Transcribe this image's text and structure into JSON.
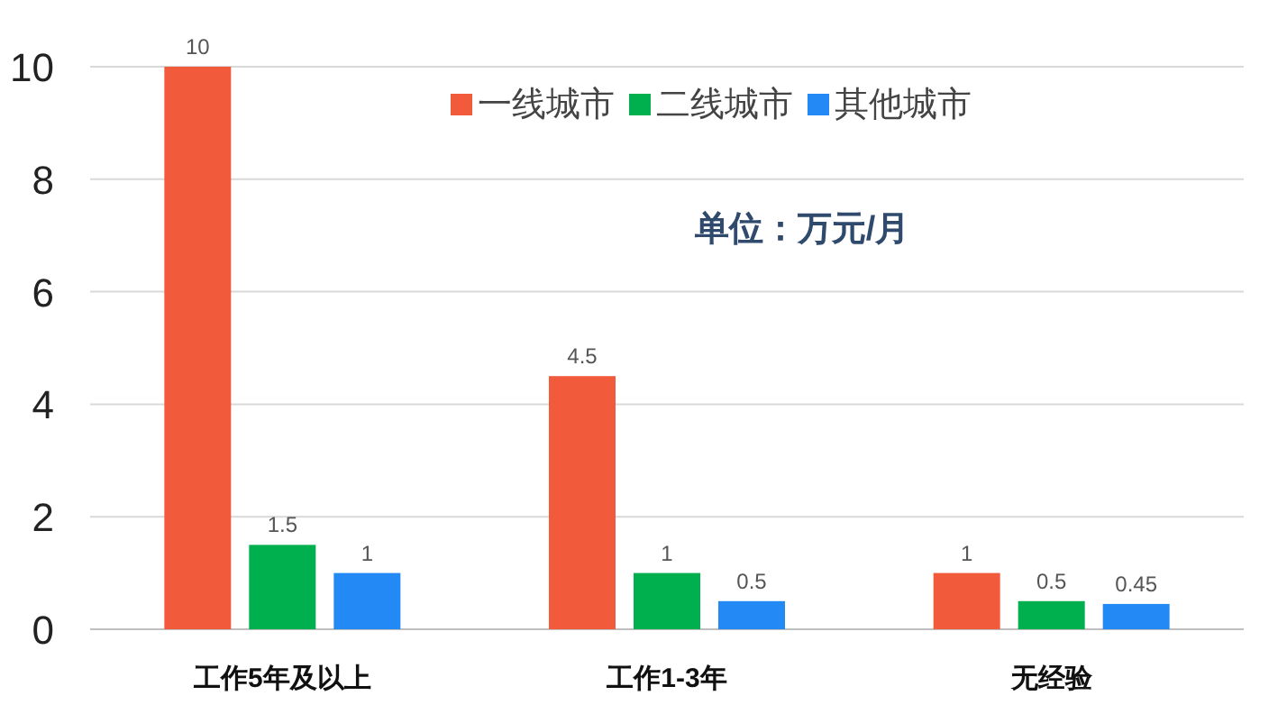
{
  "chart_data": {
    "type": "bar",
    "categories": [
      "工作5年及以上",
      "工作1-3年",
      "无经验"
    ],
    "series": [
      {
        "name": "一线城市",
        "color": "#f15a3a",
        "values": [
          10,
          4.5,
          1
        ]
      },
      {
        "name": "二线城市",
        "color": "#00b04f",
        "values": [
          1.5,
          1,
          0.5
        ]
      },
      {
        "name": "其他城市",
        "color": "#2389f5",
        "values": [
          1,
          0.5,
          0.45
        ]
      }
    ],
    "ylim": [
      0,
      10
    ],
    "yticks": [
      0,
      2,
      4,
      6,
      8,
      10
    ],
    "grid": "y",
    "legend": "top right",
    "data_labels": true,
    "annotations": [
      "单位：万元/月"
    ]
  }
}
